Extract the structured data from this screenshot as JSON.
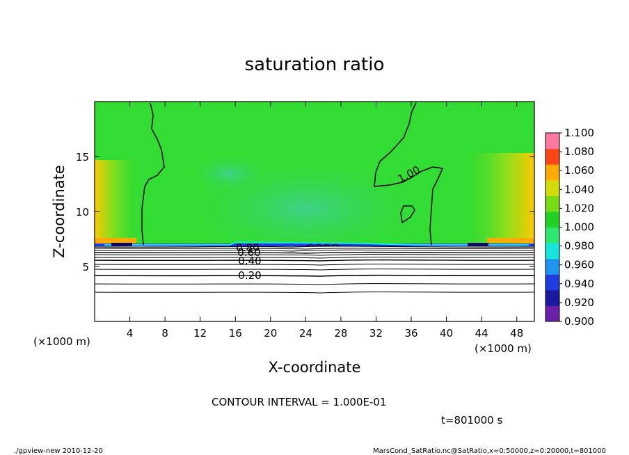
{
  "chart_data": {
    "type": "heatmap",
    "title": "saturation ratio",
    "xlabel": "X-coordinate",
    "ylabel": "Z-coordinate",
    "x_unit_left": "(×1000 m)",
    "x_unit_right": "(×1000 m)",
    "y_unit": "(×1000 m)",
    "xlim": [
      0,
      50
    ],
    "ylim": [
      0,
      20
    ],
    "x_ticks": [
      4,
      8,
      12,
      16,
      20,
      24,
      28,
      32,
      36,
      40,
      44,
      48
    ],
    "y_ticks": [
      5,
      10,
      15
    ],
    "colorbar": {
      "levels": [
        0.9,
        0.92,
        0.94,
        0.96,
        0.98,
        1.0,
        1.02,
        1.04,
        1.06,
        1.08,
        1.1
      ],
      "labels": [
        "0.900",
        "0.920",
        "0.940",
        "0.960",
        "0.980",
        "1.000",
        "1.020",
        "1.040",
        "1.060",
        "1.080",
        "1.100"
      ],
      "colors": [
        "#6a1fa8",
        "#1a1aa0",
        "#1e3ce0",
        "#1e96f0",
        "#14e6dc",
        "#2ee66e",
        "#22d222",
        "#78dc14",
        "#d2dc0a",
        "#ffaa00",
        "#ff4614",
        "#ff78a0"
      ]
    },
    "contour_labels": [
      "1.00",
      "0.80",
      "0.60",
      "0.40",
      "0.20"
    ],
    "contour_interval_text": "CONTOUR INTERVAL = 1.000E-01",
    "time_text": "t=801000 s",
    "field_description": {
      "upper_region": "saturation ratio ≈ 1.00 above z ≈ 7.2 km",
      "lower_region": "saturation ratio decreasing from ~0.9 at z ≈ 7 km to < 0.2 near the surface",
      "colors": {
        "background_field": "#32dc32",
        "undersaturated_patch": "#3cd296",
        "near_side_warm": "#ffaa00"
      }
    }
  },
  "footer": {
    "left": "./gpview-new   2010-12-20",
    "right": "MarsCond_SatRatio.nc@SatRatio,x=0:50000,z=0:20000,t=801000"
  }
}
